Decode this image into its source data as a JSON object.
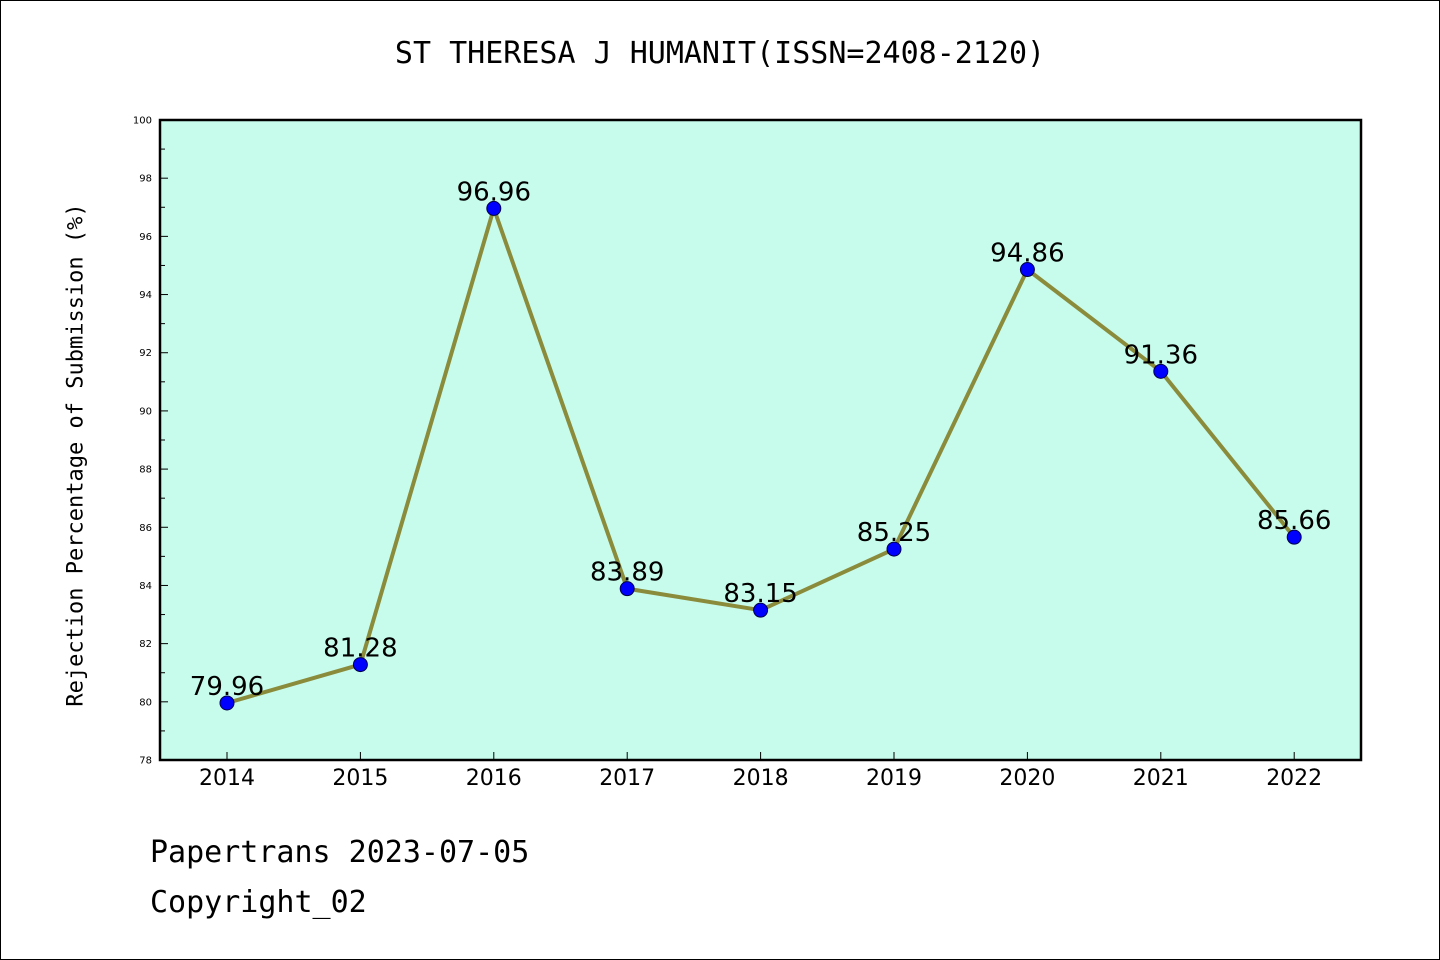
{
  "chart_data": {
    "type": "line",
    "title": "ST THERESA J HUMANIT(ISSN=2408-2120)",
    "ylabel": "Rejection Percentage of Submission (%)",
    "xlabel": "",
    "categories": [
      "2014",
      "2015",
      "2016",
      "2017",
      "2018",
      "2019",
      "2020",
      "2021",
      "2022"
    ],
    "values": [
      79.96,
      81.28,
      96.96,
      83.89,
      83.15,
      85.25,
      94.86,
      91.36,
      85.66
    ],
    "data_labels": [
      "79.96",
      "81.28",
      "96.96",
      "83.89",
      "83.15",
      "85.25",
      "94.86",
      "91.36",
      "85.66"
    ],
    "ylim": [
      78,
      100
    ],
    "yticks": [
      78,
      80,
      82,
      84,
      86,
      88,
      90,
      92,
      94,
      96,
      98,
      100
    ],
    "grid": false,
    "colors": {
      "plot_background": "#c7fcec",
      "line": "#8b8b3c",
      "marker": "#0000ff"
    }
  },
  "footer": {
    "line1": "Papertrans 2023-07-05",
    "line2": "Copyright_02"
  }
}
